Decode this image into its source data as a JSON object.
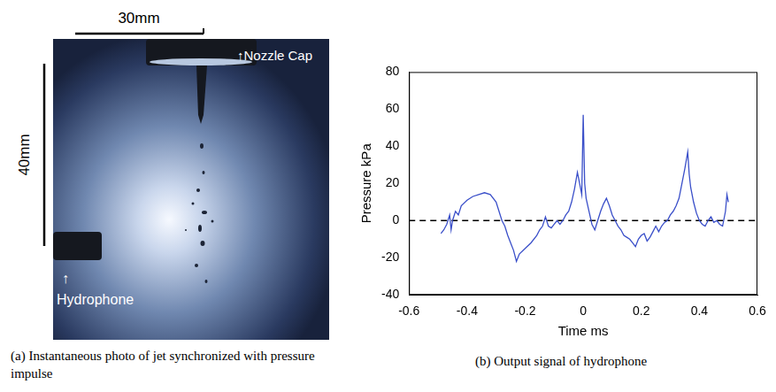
{
  "photo": {
    "scale_x_label": "30mm",
    "scale_y_label": "40mm",
    "nozzle_label": "↑Nozzle Cap",
    "hydrophone_label": [
      "↑",
      "Hydrophone"
    ],
    "caption": "(a) Instantaneous photo of jet synchronized with pressure impulse"
  },
  "chart_data": {
    "type": "line",
    "caption": "(b) Output signal of hydrophone",
    "x_label": "Time ms",
    "y_label": "Pressure kPa",
    "xlim": [
      -0.6,
      0.6
    ],
    "xticks": [
      -0.6,
      -0.4,
      -0.2,
      0,
      0.2,
      0.4,
      0.6
    ],
    "ylim": [
      -40,
      80
    ],
    "yticks": [
      -40,
      -20,
      0,
      20,
      40,
      60,
      80
    ],
    "grid": false,
    "color": "#3a4fc9",
    "reference_line": {
      "y": 0,
      "line_style": "dashed"
    },
    "x": [
      -0.49,
      -0.48,
      -0.47,
      -0.46,
      -0.455,
      -0.45,
      -0.44,
      -0.43,
      -0.42,
      -0.4,
      -0.38,
      -0.36,
      -0.34,
      -0.32,
      -0.3,
      -0.29,
      -0.28,
      -0.27,
      -0.26,
      -0.25,
      -0.24,
      -0.23,
      -0.22,
      -0.2,
      -0.18,
      -0.16,
      -0.15,
      -0.14,
      -0.13,
      -0.12,
      -0.11,
      -0.1,
      -0.09,
      -0.08,
      -0.07,
      -0.06,
      -0.05,
      -0.04,
      -0.03,
      -0.02,
      -0.01,
      -0.005,
      0,
      0.005,
      0.01,
      0.02,
      0.03,
      0.04,
      0.05,
      0.06,
      0.07,
      0.08,
      0.09,
      0.1,
      0.11,
      0.12,
      0.13,
      0.14,
      0.15,
      0.16,
      0.17,
      0.18,
      0.19,
      0.2,
      0.21,
      0.22,
      0.23,
      0.24,
      0.25,
      0.26,
      0.27,
      0.28,
      0.29,
      0.3,
      0.31,
      0.32,
      0.33,
      0.34,
      0.35,
      0.36,
      0.365,
      0.37,
      0.38,
      0.39,
      0.4,
      0.41,
      0.42,
      0.43,
      0.44,
      0.45,
      0.46,
      0.47,
      0.48,
      0.49,
      0.495,
      0.5
    ],
    "values": [
      -7,
      -5,
      -2,
      3,
      -5,
      0,
      5,
      3,
      8,
      11,
      13,
      14,
      15,
      14,
      10,
      5,
      0,
      -3,
      -8,
      -12,
      -16,
      -22,
      -18,
      -15,
      -12,
      -8,
      -5,
      -3,
      2,
      -3,
      -4,
      -2,
      0,
      -2,
      0,
      3,
      5,
      10,
      17,
      26,
      18,
      14,
      57,
      20,
      12,
      5,
      -2,
      -5,
      0,
      5,
      9,
      12,
      8,
      3,
      0,
      -3,
      -5,
      -8,
      -9,
      -10,
      -12,
      -14,
      -10,
      -8,
      -7,
      -11,
      -9,
      -6,
      -3,
      -6,
      -3,
      -1,
      0,
      3,
      5,
      8,
      12,
      20,
      28,
      37,
      25,
      18,
      10,
      4,
      0,
      -2,
      -3,
      0,
      2,
      -1,
      0,
      -2,
      -3,
      5,
      14,
      10
    ]
  }
}
